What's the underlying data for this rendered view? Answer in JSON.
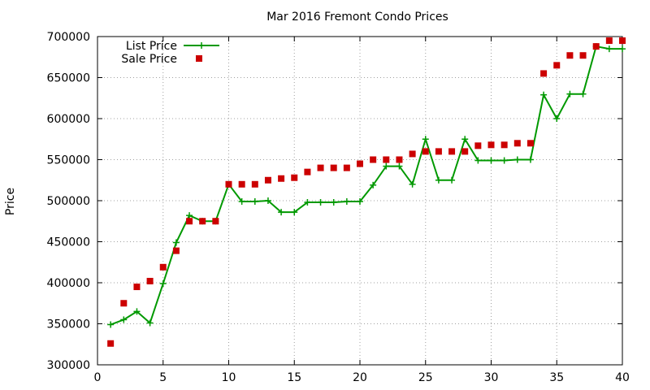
{
  "chart_data": {
    "type": "line",
    "title": "Mar 2016 Fremont Condo Prices",
    "xlabel": "",
    "ylabel": "Price",
    "xlim": [
      0,
      40
    ],
    "ylim": [
      300000,
      700000
    ],
    "xticks": [
      0,
      5,
      10,
      15,
      20,
      25,
      30,
      35,
      40
    ],
    "yticks": [
      300000,
      350000,
      400000,
      450000,
      500000,
      550000,
      600000,
      650000,
      700000
    ],
    "grid": true,
    "legend_position": "top-left",
    "series": [
      {
        "name": "List Price",
        "style": "linespoints",
        "marker": "plus",
        "color": "#009900",
        "x": [
          1,
          2,
          3,
          4,
          5,
          6,
          7,
          8,
          9,
          10,
          11,
          12,
          13,
          14,
          15,
          16,
          17,
          18,
          19,
          20,
          21,
          22,
          23,
          24,
          25,
          26,
          27,
          28,
          29,
          30,
          31,
          32,
          33,
          34,
          35,
          36,
          37,
          38,
          39,
          40
        ],
        "y": [
          349000,
          355000,
          365000,
          351000,
          399000,
          449000,
          482000,
          475000,
          475000,
          520000,
          499000,
          499000,
          500000,
          486000,
          486000,
          498000,
          498000,
          498000,
          499000,
          499000,
          519000,
          542000,
          542000,
          520000,
          575000,
          525000,
          525000,
          575000,
          549000,
          549000,
          549000,
          550000,
          550000,
          629000,
          600000,
          630000,
          630000,
          688000,
          685000,
          685000
        ]
      },
      {
        "name": "Sale Price",
        "style": "points",
        "marker": "square",
        "color": "#cc0000",
        "x": [
          1,
          2,
          3,
          4,
          5,
          6,
          7,
          8,
          9,
          10,
          11,
          12,
          13,
          14,
          15,
          16,
          17,
          18,
          19,
          20,
          21,
          22,
          23,
          24,
          25,
          26,
          27,
          28,
          29,
          30,
          31,
          32,
          33,
          34,
          35,
          36,
          37,
          38,
          39,
          40
        ],
        "y": [
          326000,
          375000,
          395000,
          402000,
          419000,
          439000,
          475000,
          475000,
          475000,
          520000,
          520000,
          520000,
          525000,
          527000,
          528000,
          535000,
          540000,
          540000,
          540000,
          545000,
          550000,
          550000,
          550000,
          557000,
          560000,
          560000,
          560000,
          560000,
          567000,
          568000,
          568000,
          570000,
          570000,
          655000,
          665000,
          677000,
          677000,
          688000,
          695000,
          695000
        ]
      }
    ]
  }
}
